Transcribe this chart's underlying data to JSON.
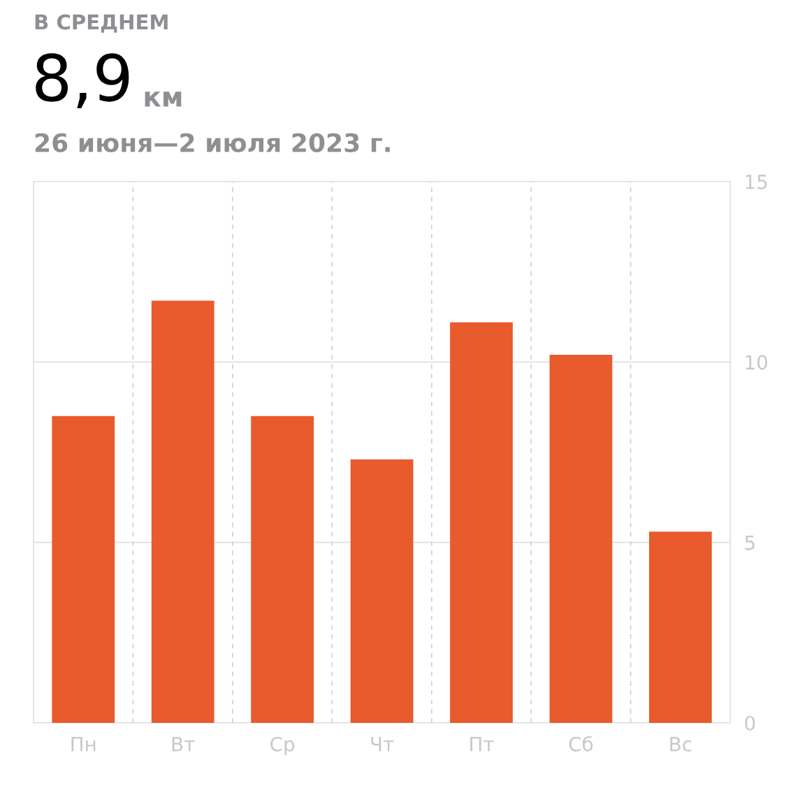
{
  "chart_data": {
    "type": "bar",
    "title": "В СРЕДНЕМ",
    "subtitle": "26 июня—2 июля 2023 г.",
    "annotations": [
      "8,9",
      "км"
    ],
    "categories": [
      "Пн",
      "Вт",
      "Ср",
      "Чт",
      "Пт",
      "Сб",
      "Вс"
    ],
    "values": [
      8.5,
      11.7,
      8.5,
      7.3,
      11.1,
      10.2,
      5.3
    ],
    "color": "#e95a2c",
    "ylim": [
      0,
      15
    ],
    "yticks": [
      0,
      5,
      10,
      15
    ],
    "grid": "y",
    "legend": false
  }
}
